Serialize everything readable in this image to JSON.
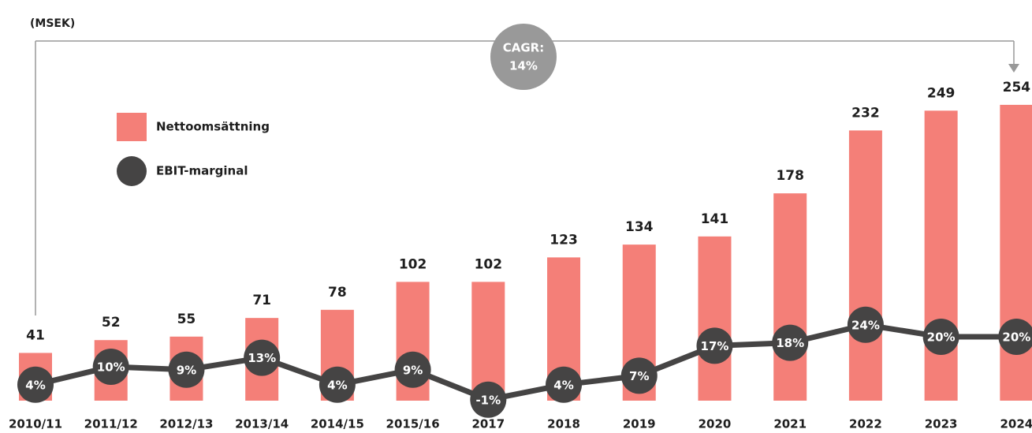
{
  "chart_data": {
    "type": "combo",
    "unit_label": "(MSEK)",
    "annotation": [
      "CAGR:",
      "14%"
    ],
    "categories": [
      "2010/11",
      "2011/12",
      "2012/13",
      "2013/14",
      "2014/15",
      "2015/16",
      "2017",
      "2018",
      "2019",
      "2020",
      "2021",
      "2022",
      "2023",
      "2024"
    ],
    "series": [
      {
        "name": "Nettoomsättning",
        "type": "bar",
        "color": "#f47f78",
        "values": [
          41,
          52,
          55,
          71,
          78,
          102,
          102,
          123,
          134,
          141,
          178,
          232,
          249,
          254
        ]
      },
      {
        "name": "EBIT-marginal",
        "type": "line",
        "axis": "y2",
        "color": "#454444",
        "values": [
          4,
          10,
          9,
          13,
          4,
          9,
          -1,
          4,
          7,
          17,
          18,
          24,
          20,
          20
        ],
        "value_labels": [
          "4%",
          "10%",
          "9%",
          "13%",
          "4%",
          "9%",
          "-1%",
          "4%",
          "7%",
          "17%",
          "18%",
          "24%",
          "20%",
          "20%"
        ]
      }
    ],
    "ylim": [
      0,
      300
    ],
    "y2lim": [
      0,
      100
    ],
    "grid": false,
    "legend": "top-left"
  }
}
